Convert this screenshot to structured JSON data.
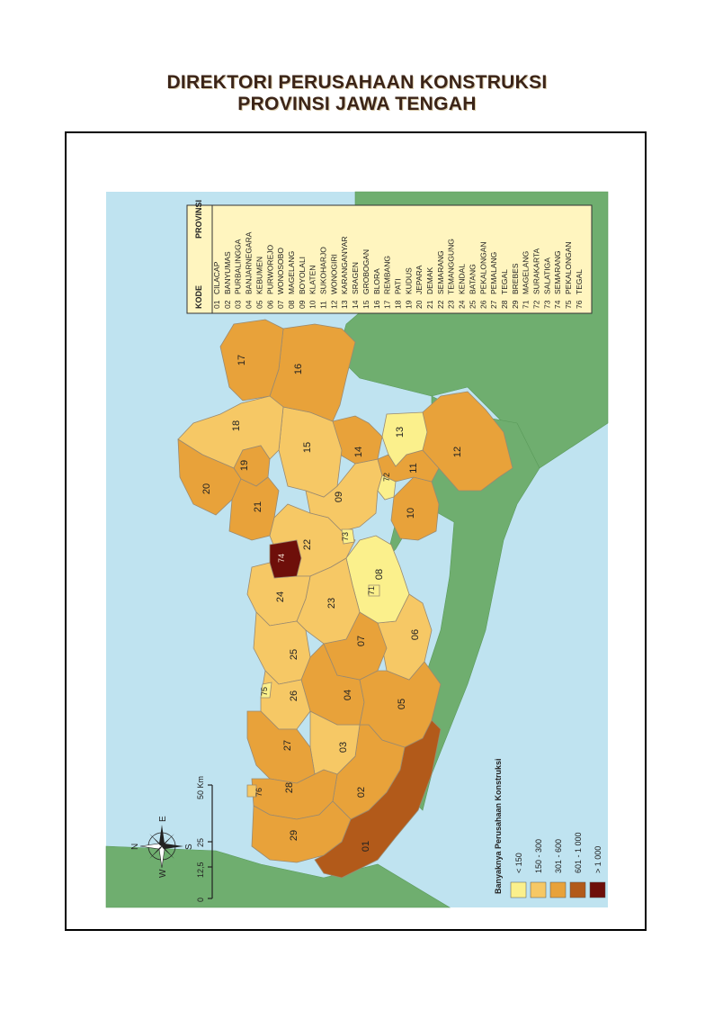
{
  "document": {
    "title_line1": "DIREKTORI PERUSAHAAN KONSTRUKSI",
    "title_line2": "PROVINSI JAWA TENGAH"
  },
  "legend_table": {
    "header_code": "KODE",
    "header_name": "PROVINSI",
    "rows": [
      {
        "code": "01",
        "name": "CILACAP"
      },
      {
        "code": "02",
        "name": "BANYUMAS"
      },
      {
        "code": "03",
        "name": "PURBALINGGA"
      },
      {
        "code": "04",
        "name": "BANJARNEGARA"
      },
      {
        "code": "05",
        "name": "KEBUMEN"
      },
      {
        "code": "06",
        "name": "PURWOREJO"
      },
      {
        "code": "07",
        "name": "WONOSOBO"
      },
      {
        "code": "08",
        "name": "MAGELANG"
      },
      {
        "code": "09",
        "name": "BOYOLALI"
      },
      {
        "code": "10",
        "name": "KLATEN"
      },
      {
        "code": "11",
        "name": "SUKOHARJO"
      },
      {
        "code": "12",
        "name": "WONOGIRI"
      },
      {
        "code": "13",
        "name": "KARANGANYAR"
      },
      {
        "code": "14",
        "name": "SRAGEN"
      },
      {
        "code": "15",
        "name": "GROBOGAN"
      },
      {
        "code": "16",
        "name": "BLORA"
      },
      {
        "code": "17",
        "name": "REMBANG"
      },
      {
        "code": "18",
        "name": "PATI"
      },
      {
        "code": "19",
        "name": "KUDUS"
      },
      {
        "code": "20",
        "name": "JEPARA"
      },
      {
        "code": "21",
        "name": "DEMAK"
      },
      {
        "code": "22",
        "name": "SEMARANG"
      },
      {
        "code": "23",
        "name": "TEMANGGUNG"
      },
      {
        "code": "24",
        "name": "KENDAL"
      },
      {
        "code": "25",
        "name": "BATANG"
      },
      {
        "code": "26",
        "name": "PEKALONGAN"
      },
      {
        "code": "27",
        "name": "PEMALANG"
      },
      {
        "code": "28",
        "name": "TEGAL"
      },
      {
        "code": "29",
        "name": "BREBES"
      },
      {
        "code": "71",
        "name": "MAGELANG"
      },
      {
        "code": "72",
        "name": "SURAKARTA"
      },
      {
        "code": "73",
        "name": "SALATIGA"
      },
      {
        "code": "74",
        "name": "SEMARANG"
      },
      {
        "code": "75",
        "name": "PEKALONGAN"
      },
      {
        "code": "76",
        "name": "TEGAL"
      }
    ]
  },
  "map_legend": {
    "title": "Banyaknya Perusahaan Konstruksi",
    "classes": [
      {
        "label": "< 150",
        "color": "#fbf08c"
      },
      {
        "label": "150 - 300",
        "color": "#f6c865"
      },
      {
        "label": "301 - 600",
        "color": "#e8a23a"
      },
      {
        "label": "601 - 1 000",
        "color": "#b25a1a"
      },
      {
        "label": "> 1 000",
        "color": "#6e0f0a"
      }
    ]
  },
  "scale_bar": {
    "ticks": [
      "0",
      "12,5",
      "25",
      "50 Km"
    ]
  },
  "compass": {
    "n": "N",
    "s": "S",
    "e": "E",
    "w": "W"
  },
  "regions": [
    {
      "code": "01",
      "cls": 3
    },
    {
      "code": "02",
      "cls": 2
    },
    {
      "code": "03",
      "cls": 1
    },
    {
      "code": "04",
      "cls": 2
    },
    {
      "code": "05",
      "cls": 2
    },
    {
      "code": "06",
      "cls": 1
    },
    {
      "code": "07",
      "cls": 2
    },
    {
      "code": "08",
      "cls": 0
    },
    {
      "code": "09",
      "cls": 1
    },
    {
      "code": "10",
      "cls": 2
    },
    {
      "code": "11",
      "cls": 2
    },
    {
      "code": "12",
      "cls": 2
    },
    {
      "code": "13",
      "cls": 0
    },
    {
      "code": "14",
      "cls": 2
    },
    {
      "code": "15",
      "cls": 1
    },
    {
      "code": "16",
      "cls": 2
    },
    {
      "code": "17",
      "cls": 2
    },
    {
      "code": "18",
      "cls": 1
    },
    {
      "code": "19",
      "cls": 2
    },
    {
      "code": "20",
      "cls": 2
    },
    {
      "code": "21",
      "cls": 2
    },
    {
      "code": "22",
      "cls": 1
    },
    {
      "code": "23",
      "cls": 1
    },
    {
      "code": "24",
      "cls": 1
    },
    {
      "code": "25",
      "cls": 1
    },
    {
      "code": "26",
      "cls": 1
    },
    {
      "code": "27",
      "cls": 2
    },
    {
      "code": "28",
      "cls": 2
    },
    {
      "code": "29",
      "cls": 2
    },
    {
      "code": "71",
      "cls": 0
    },
    {
      "code": "72",
      "cls": 0
    },
    {
      "code": "73",
      "cls": 0
    },
    {
      "code": "74",
      "cls": 4
    },
    {
      "code": "75",
      "cls": 0
    },
    {
      "code": "76",
      "cls": 1
    }
  ],
  "colors": {
    "sea": "#bfe3f0",
    "neighbour_land": "#6fae6f",
    "border": "#9a8a70"
  }
}
